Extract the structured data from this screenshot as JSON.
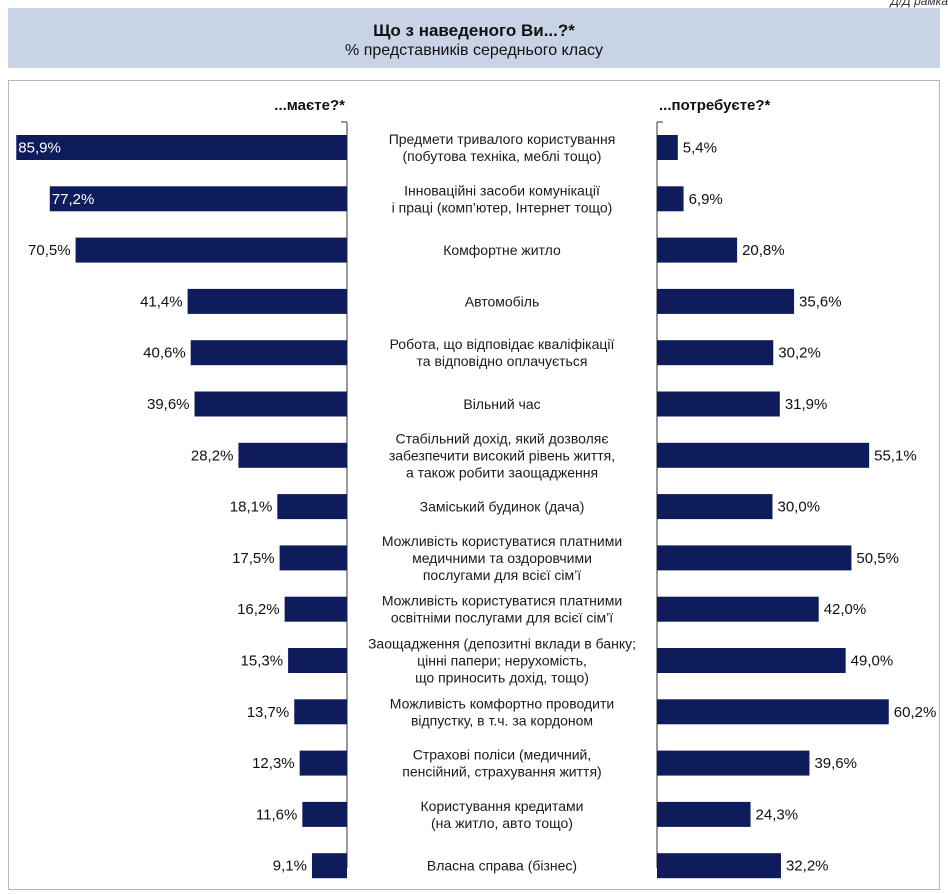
{
  "header": {
    "corner_label": "Д/Д рамка",
    "title": "Що з наведеного Ви...?*",
    "subtitle": "% представників середнього класу"
  },
  "chart_data": {
    "type": "bar",
    "title": "Що з наведеного Ви...?*",
    "subtitle": "% представників середнього класу",
    "xlim": [
      0,
      100
    ],
    "series": [
      {
        "name": "...маєте?*",
        "side": "left",
        "values": [
          85.9,
          77.2,
          70.5,
          41.4,
          40.6,
          39.6,
          28.2,
          18.1,
          17.5,
          16.2,
          15.3,
          13.7,
          12.3,
          11.6,
          9.1
        ],
        "labels": [
          "85,9%",
          "77,2%",
          "70,5%",
          "41,4%",
          "40,6%",
          "39,6%",
          "28,2%",
          "18,1%",
          "17,5%",
          "16,2%",
          "15,3%",
          "13,7%",
          "12,3%",
          "11,6%",
          "9,1%"
        ]
      },
      {
        "name": "...потребуєте?*",
        "side": "right",
        "values": [
          5.4,
          6.9,
          20.8,
          35.6,
          30.2,
          31.9,
          55.1,
          30.0,
          50.5,
          42.0,
          49.0,
          60.2,
          39.6,
          24.3,
          32.2
        ],
        "labels": [
          "5,4%",
          "6,9%",
          "20,8%",
          "35,6%",
          "30,2%",
          "31,9%",
          "55,1%",
          "30,0%",
          "50,5%",
          "42,0%",
          "49,0%",
          "60,2%",
          "39,6%",
          "24,3%",
          "32,2%"
        ]
      }
    ],
    "categories": [
      [
        "Предмети тривалого користування",
        "(побутова техніка, меблі тощо)"
      ],
      [
        "Інноваційні засоби комунікації",
        "і праці (комп’ютер, Інтернет тощо)"
      ],
      [
        "Комфортне житло"
      ],
      [
        "Автомобіль"
      ],
      [
        "Робота, що відповідає кваліфікації",
        "та відповідно оплачується"
      ],
      [
        "Вільний час"
      ],
      [
        "Стабільний дохід, який дозволяє",
        "забезпечити високий рівень життя,",
        "а також робити заощадження"
      ],
      [
        "Заміський будинок (дача)"
      ],
      [
        "Можливість користуватися платними",
        "медичними та оздоровчими",
        "послугами для всієї сім’ї"
      ],
      [
        "Можливість користуватися платними",
        "освітніми послугами для всієї сім’ї"
      ],
      [
        "Заощадження (депозитні вклади в банку;",
        "цінні папери; нерухомість,",
        "що приносить дохід, тощо)"
      ],
      [
        "Можливість комфортно проводити",
        "відпустку, в т.ч. за кордоном"
      ],
      [
        "Страхові поліси (медичний,",
        "пенсійний, страхування життя)"
      ],
      [
        "Користування кредитами",
        "(на житло, авто тощо)"
      ],
      [
        "Власна справа (бізнес)"
      ]
    ],
    "colors": {
      "bar": "#0f1c5c",
      "header_bg": "#c9d3e6"
    }
  }
}
